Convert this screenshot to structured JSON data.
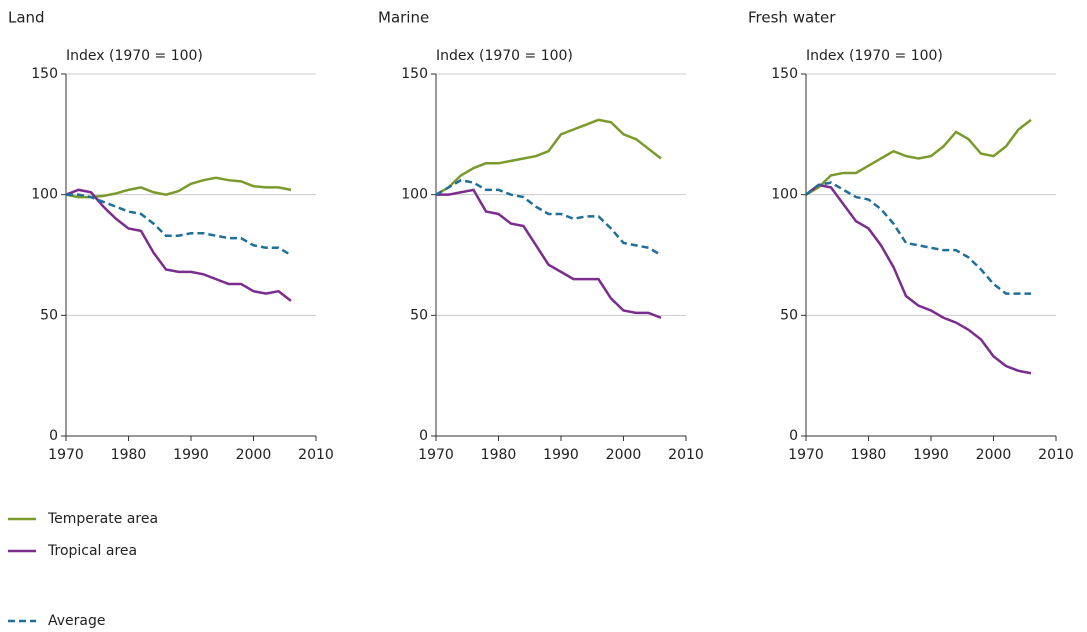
{
  "chart_data": [
    {
      "type": "line",
      "title": "Land",
      "ylabel": "Index (1970 = 100)",
      "x": [
        1970,
        1972,
        1974,
        1976,
        1978,
        1980,
        1982,
        1984,
        1986,
        1988,
        1990,
        1992,
        1994,
        1996,
        1998,
        2000,
        2002,
        2004,
        2006
      ],
      "xlim": [
        1970,
        2010
      ],
      "ylim": [
        0,
        150
      ],
      "xticks": [
        1970,
        1980,
        1990,
        2000,
        2010
      ],
      "yticks": [
        0,
        50,
        100,
        150
      ],
      "grid": true,
      "series": [
        {
          "name": "Temperate area",
          "color": "#7a9a2c",
          "dashed": false,
          "values": [
            100,
            99,
            99,
            99.5,
            100.5,
            102,
            103,
            101,
            100,
            101.5,
            104.5,
            106,
            107,
            106,
            105.5,
            103.5,
            103,
            103,
            102
          ]
        },
        {
          "name": "Tropical area",
          "color": "#7b2d8e",
          "dashed": false,
          "values": [
            100,
            102,
            101,
            95,
            90,
            86,
            85,
            76,
            69,
            68,
            68,
            67,
            65,
            63,
            63,
            60,
            59,
            60,
            56
          ]
        },
        {
          "name": "Average",
          "color": "#1f6f99",
          "dashed": true,
          "values": [
            100,
            100,
            99,
            97,
            95,
            93,
            92,
            88,
            83,
            83,
            84,
            84,
            83,
            82,
            82,
            79,
            78,
            78,
            75
          ]
        }
      ]
    },
    {
      "type": "line",
      "title": "Marine",
      "ylabel": "Index (1970 = 100)",
      "x": [
        1970,
        1972,
        1974,
        1976,
        1978,
        1980,
        1982,
        1984,
        1986,
        1988,
        1990,
        1992,
        1994,
        1996,
        1998,
        2000,
        2002,
        2004,
        2006
      ],
      "xlim": [
        1970,
        2010
      ],
      "ylim": [
        0,
        150
      ],
      "xticks": [
        1970,
        1980,
        1990,
        2000,
        2010
      ],
      "yticks": [
        0,
        50,
        100,
        150
      ],
      "grid": true,
      "series": [
        {
          "name": "Temperate area",
          "color": "#7a9a2c",
          "dashed": false,
          "values": [
            100,
            103,
            108,
            111,
            113,
            113,
            114,
            115,
            116,
            118,
            125,
            127,
            129,
            131,
            130,
            125,
            123,
            119,
            115
          ]
        },
        {
          "name": "Tropical area",
          "color": "#7b2d8e",
          "dashed": false,
          "values": [
            100,
            100,
            101,
            102,
            93,
            92,
            88,
            87,
            79,
            71,
            68,
            65,
            65,
            65,
            57,
            52,
            51,
            51,
            49
          ]
        },
        {
          "name": "Average",
          "color": "#1f6f99",
          "dashed": true,
          "values": [
            100,
            103,
            106,
            105,
            102,
            102,
            100,
            99,
            95,
            92,
            92,
            90,
            91,
            91,
            86,
            80,
            79,
            78,
            75
          ]
        }
      ]
    },
    {
      "type": "line",
      "title": "Fresh water",
      "ylabel": "Index (1970 = 100)",
      "x": [
        1970,
        1972,
        1974,
        1976,
        1978,
        1980,
        1982,
        1984,
        1986,
        1988,
        1990,
        1992,
        1994,
        1996,
        1998,
        2000,
        2002,
        2004,
        2006
      ],
      "xlim": [
        1970,
        2010
      ],
      "ylim": [
        0,
        150
      ],
      "xticks": [
        1970,
        1980,
        1990,
        2000,
        2010
      ],
      "yticks": [
        0,
        50,
        100,
        150
      ],
      "grid": true,
      "series": [
        {
          "name": "Temperate area",
          "color": "#7a9a2c",
          "dashed": false,
          "values": [
            100,
            103,
            108,
            109,
            109,
            112,
            115,
            118,
            116,
            115,
            116,
            120,
            126,
            123,
            117,
            116,
            120,
            127,
            131
          ]
        },
        {
          "name": "Tropical area",
          "color": "#7b2d8e",
          "dashed": false,
          "values": [
            100,
            104,
            103,
            96,
            89,
            86,
            79,
            70,
            58,
            54,
            52,
            49,
            47,
            44,
            40,
            33,
            29,
            27,
            26
          ]
        },
        {
          "name": "Average",
          "color": "#1f6f99",
          "dashed": true,
          "values": [
            100,
            104,
            105,
            102,
            99,
            98,
            94,
            88,
            80,
            79,
            78,
            77,
            77,
            74,
            69,
            63,
            59,
            59,
            59
          ]
        }
      ]
    }
  ]
}
